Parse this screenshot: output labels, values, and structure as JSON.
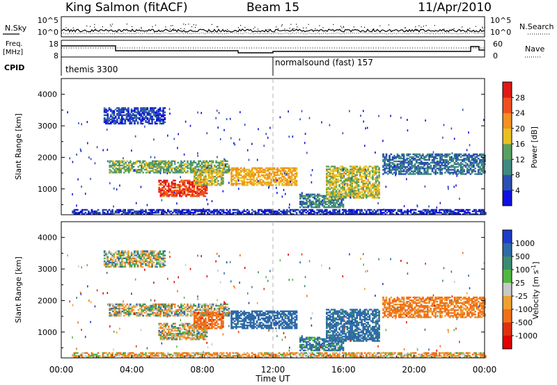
{
  "header": {
    "station": "King Salmon (fitACF)",
    "beam": "Beam 15",
    "date": "11/Apr/2010"
  },
  "sky_panel": {
    "left_label": "N.Sky",
    "right_label": "N.Search",
    "left_ticks": [
      "10^5",
      "10^0"
    ],
    "right_ticks": [
      "10^5",
      "10^0"
    ]
  },
  "freq_panel": {
    "left_label_1": "Freq.",
    "left_label_2": "[MHz]",
    "right_label": "Nave",
    "left_ticks": [
      "18",
      "8"
    ],
    "right_ticks": [
      "60",
      "0"
    ]
  },
  "cpid": {
    "label": "CPID",
    "modes": [
      {
        "text": "themis 3300",
        "start_hour": 0
      },
      {
        "text": "normalsound (fast) 157",
        "start_hour": 12
      }
    ]
  },
  "colors": {
    "power_scale": [
      "#1010e0",
      "#2a4fb0",
      "#3f8a80",
      "#5aa060",
      "#e8c020",
      "#f29020",
      "#f05020",
      "#e01818"
    ],
    "velocity_scale": [
      "#1e3cc8",
      "#2e6aa8",
      "#3a8c70",
      "#50b840",
      "#c8c8c8",
      "#f0a030",
      "#f07018",
      "#e03010",
      "#e00000"
    ]
  },
  "chart_data": [
    {
      "type": "heatmap",
      "title": "Power",
      "ylabel": "Slant Range [km]",
      "xlabel": "Time UT",
      "x_range_hours": [
        0,
        24
      ],
      "y_range_km": [
        180,
        4500
      ],
      "x_ticks": [
        "00:00",
        "04:00",
        "08:00",
        "12:00",
        "16:00",
        "20:00",
        "00:00"
      ],
      "y_ticks": [
        "1000",
        "2000",
        "3000",
        "4000"
      ],
      "colorbar": {
        "label": "Power [dB]",
        "ticks": [
          "4",
          "8",
          "12",
          "16",
          "20",
          "24",
          "28"
        ],
        "range": [
          0,
          32
        ]
      },
      "echo_regions": [
        {
          "t0": 2.4,
          "t1": 5.9,
          "r0": 3050,
          "r1": 3550,
          "value": 5
        },
        {
          "t0": 2.7,
          "t1": 9.5,
          "r0": 1500,
          "r1": 1900,
          "value": 14
        },
        {
          "t0": 5.5,
          "t1": 8.2,
          "r0": 750,
          "r1": 1250,
          "value": 27
        },
        {
          "t0": 7.5,
          "t1": 9.2,
          "r0": 1100,
          "r1": 1600,
          "value": 18
        },
        {
          "t0": 9.6,
          "t1": 13.3,
          "r0": 1100,
          "r1": 1650,
          "value": 20
        },
        {
          "t0": 13.5,
          "t1": 16.0,
          "r0": 400,
          "r1": 850,
          "value": 10
        },
        {
          "t0": 15.0,
          "t1": 18.0,
          "r0": 700,
          "r1": 1700,
          "value": 17
        },
        {
          "t0": 18.2,
          "t1": 24.0,
          "r0": 1450,
          "r1": 2100,
          "value": 8
        },
        {
          "t0": 0.6,
          "t1": 24.0,
          "r0": 180,
          "r1": 350,
          "value": 4
        }
      ]
    },
    {
      "type": "heatmap",
      "title": "Velocity",
      "ylabel": "Slant Range [km]",
      "xlabel": "Time UT",
      "x_range_hours": [
        0,
        24
      ],
      "y_range_km": [
        180,
        4500
      ],
      "x_ticks": [
        "00:00",
        "04:00",
        "08:00",
        "12:00",
        "16:00",
        "20:00",
        "00:00"
      ],
      "y_ticks": [
        "1000",
        "2000",
        "3000",
        "4000"
      ],
      "colorbar": {
        "label": "Velocity [m s^-1]",
        "ticks": [
          "1000",
          "500",
          "100",
          "25",
          "-25",
          "-100",
          "-500",
          "-1000"
        ]
      },
      "echo_regions": [
        {
          "t0": 2.4,
          "t1": 5.9,
          "r0": 3050,
          "r1": 3550,
          "value": 0
        },
        {
          "t0": 2.7,
          "t1": 9.5,
          "r0": 1500,
          "r1": 1900,
          "value": 0
        },
        {
          "t0": 5.5,
          "t1": 8.2,
          "r0": 750,
          "r1": 1250,
          "value": 0
        },
        {
          "t0": 7.5,
          "t1": 9.2,
          "r0": 1100,
          "r1": 1600,
          "value": -400
        },
        {
          "t0": 9.6,
          "t1": 13.3,
          "r0": 1100,
          "r1": 1650,
          "value": 300
        },
        {
          "t0": 13.5,
          "t1": 16.0,
          "r0": 400,
          "r1": 850,
          "value": 150
        },
        {
          "t0": 15.0,
          "t1": 18.0,
          "r0": 700,
          "r1": 1700,
          "value": 200
        },
        {
          "t0": 18.2,
          "t1": 24.0,
          "r0": 1450,
          "r1": 2100,
          "value": -150
        },
        {
          "t0": 0.6,
          "t1": 24.0,
          "r0": 180,
          "r1": 350,
          "value": -60
        }
      ]
    }
  ]
}
